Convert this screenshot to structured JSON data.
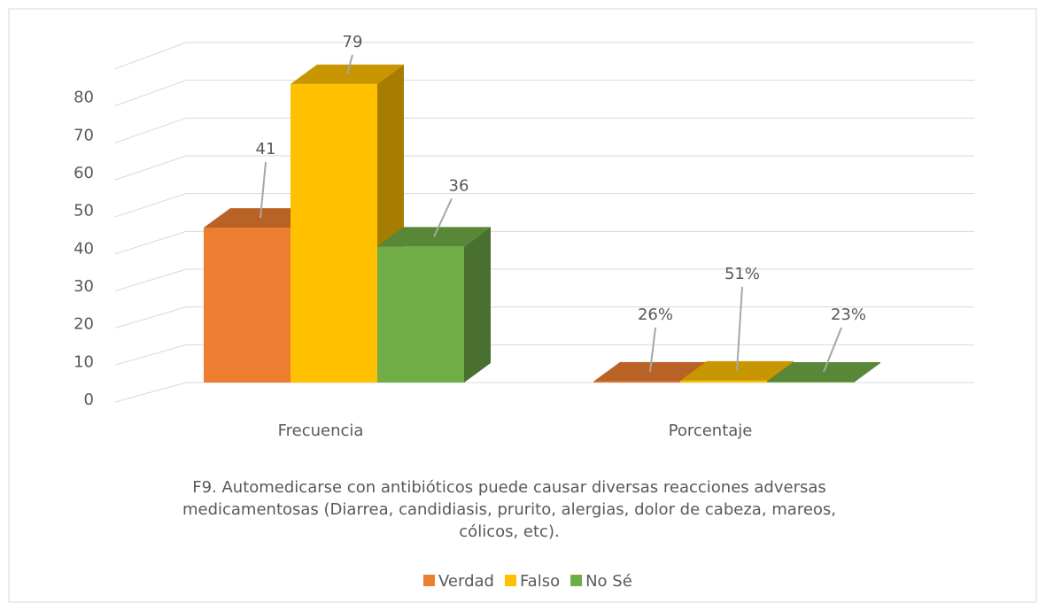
{
  "chart_data": {
    "type": "bar3d",
    "x_label": "F9. Automedicarse con antibióticos puede causar diversas reacciones adversas medicamentosas (Diarrea, candidiasis, prurito, alergias, dolor de cabeza, mareos, cólicos, etc).",
    "categories": [
      "Frecuencia",
      "Porcentaje"
    ],
    "series": [
      {
        "name": "Verdad",
        "color": "#ed7d31",
        "values": [
          41,
          0.26
        ],
        "value_labels": [
          "41",
          "26%"
        ]
      },
      {
        "name": "Falso",
        "color": "#ffc000",
        "values": [
          79,
          0.51
        ],
        "value_labels": [
          "79",
          "51%"
        ]
      },
      {
        "name": "No Sé",
        "color": "#70ad47",
        "values": [
          36,
          0.23
        ],
        "value_labels": [
          "36",
          "23%"
        ]
      }
    ],
    "ylim": [
      0,
      90
    ],
    "yticks": [
      0,
      10,
      20,
      30,
      40,
      50,
      60,
      70,
      80
    ],
    "grid": true,
    "legend": "bottom"
  }
}
